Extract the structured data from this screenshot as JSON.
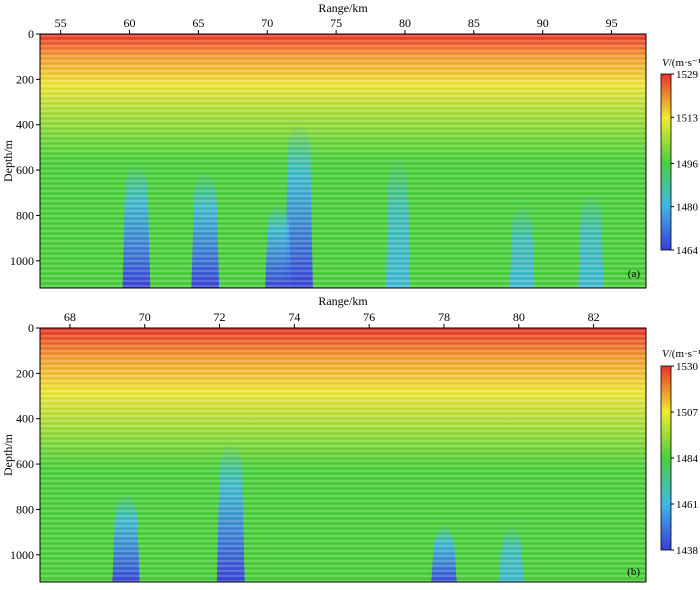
{
  "chart_data": [
    {
      "type": "heatmap",
      "panel_label": "(a)",
      "xlabel": "Range/km",
      "ylabel": "Depth/m",
      "xlim": [
        53.5,
        97.5
      ],
      "ylim": [
        0,
        1120
      ],
      "x_ticks": [
        55,
        60,
        65,
        70,
        75,
        80,
        85,
        90,
        95
      ],
      "y_ticks": [
        0,
        200,
        400,
        600,
        800,
        1000
      ],
      "colorbar": {
        "unit_var": "V",
        "unit": "/(m·s⁻¹)",
        "min": 1464,
        "max": 1529,
        "ticks": [
          1464,
          1480,
          1496,
          1513,
          1529
        ]
      },
      "slow_anomalies": [
        {
          "x": 60.5,
          "top": 520,
          "value": 1464
        },
        {
          "x": 65.5,
          "top": 560,
          "value": 1464
        },
        {
          "x": 72.3,
          "top": 350,
          "value": 1464
        },
        {
          "x": 70.8,
          "top": 700,
          "value": 1470
        },
        {
          "x": 79.5,
          "top": 500,
          "value": 1478
        },
        {
          "x": 88.5,
          "top": 700,
          "value": 1476
        },
        {
          "x": 93.5,
          "top": 650,
          "value": 1474
        }
      ]
    },
    {
      "type": "heatmap",
      "panel_label": "(b)",
      "xlabel": "Range/km",
      "ylabel": "Depth/m",
      "xlim": [
        67.2,
        83.4
      ],
      "ylim": [
        0,
        1120
      ],
      "x_ticks": [
        68,
        70,
        72,
        74,
        76,
        78,
        80,
        82
      ],
      "y_ticks": [
        0,
        200,
        400,
        600,
        800,
        1000
      ],
      "colorbar": {
        "unit_var": "V",
        "unit": "/(m·s⁻¹)",
        "min": 1438,
        "max": 1530,
        "ticks": [
          1438,
          1461,
          1484,
          1507,
          1530
        ]
      },
      "slow_anomalies": [
        {
          "x": 69.5,
          "top": 680,
          "value": 1440
        },
        {
          "x": 72.3,
          "top": 460,
          "value": 1438
        },
        {
          "x": 78.0,
          "top": 820,
          "value": 1450
        },
        {
          "x": 79.8,
          "top": 820,
          "value": 1455
        }
      ]
    }
  ]
}
